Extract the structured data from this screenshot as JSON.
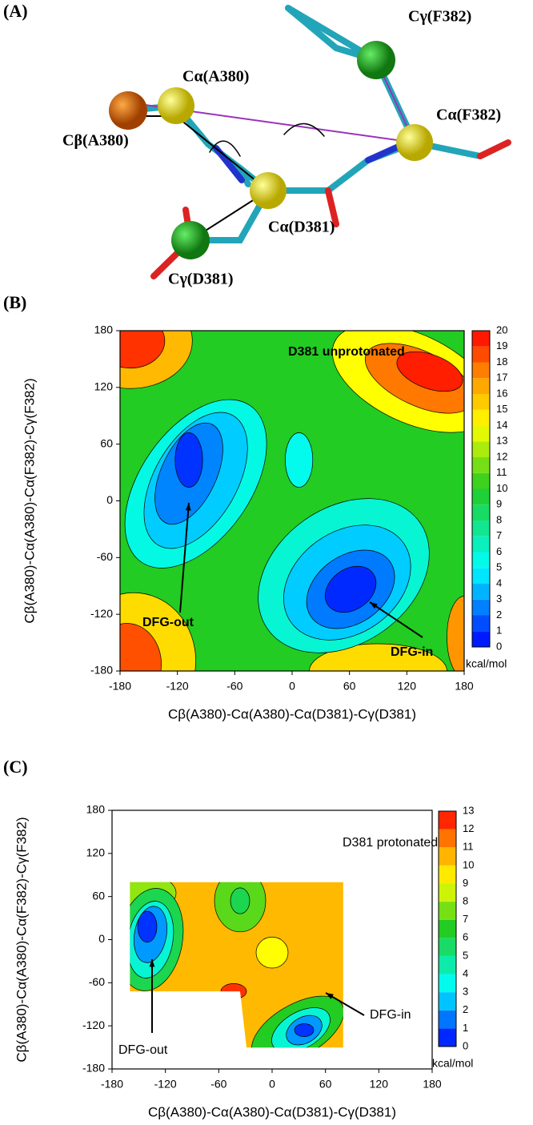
{
  "panel_a": {
    "label": "(A)",
    "atoms": [
      "Cγ(F382)",
      "Cα(A380)",
      "Cα(F382)",
      "Cβ(A380)",
      "Cα(D381)",
      "Cγ(D381)"
    ]
  },
  "panel_b": {
    "label": "(B)",
    "type": "contour",
    "xlabel": "Cβ(A380)-Cα(A380)-Cα(D381)-Cγ(D381)",
    "ylabel": "Cβ(A380)-Cα(A380)-Cα(F382)-Cγ(F382)",
    "xlim": [
      -180,
      180
    ],
    "ylim": [
      -180,
      180
    ],
    "xticks": [
      -180,
      -120,
      -60,
      0,
      60,
      120,
      180
    ],
    "yticks": [
      -180,
      -120,
      -60,
      0,
      60,
      120,
      180
    ],
    "annotations": [
      "D381 unprotonated",
      "DFG-out",
      "DFG-in"
    ],
    "colorbar": {
      "ticks": [
        0,
        1,
        2,
        3,
        4,
        5,
        6,
        7,
        8,
        9,
        10,
        11,
        12,
        13,
        14,
        15,
        16,
        17,
        18,
        19,
        20
      ],
      "unit": "kcal/mol"
    }
  },
  "panel_c": {
    "label": "(C)",
    "type": "contour",
    "xlabel": "Cβ(A380)-Cα(A380)-Cα(D381)-Cγ(D381)",
    "ylabel": "Cβ(A380)-Cα(A380)-Cα(F382)-Cγ(F382)",
    "xlim": [
      -180,
      180
    ],
    "ylim": [
      -180,
      180
    ],
    "xticks": [
      -180,
      -120,
      -60,
      0,
      60,
      120,
      180
    ],
    "yticks": [
      -180,
      -120,
      -60,
      0,
      60,
      120,
      180
    ],
    "annotations": [
      "D381 protonated",
      "DFG-out",
      "DFG-in"
    ],
    "colorbar": {
      "ticks": [
        0,
        1,
        2,
        3,
        4,
        5,
        6,
        7,
        8,
        9,
        10,
        11,
        12,
        13
      ],
      "unit": "kcal/mol"
    }
  }
}
